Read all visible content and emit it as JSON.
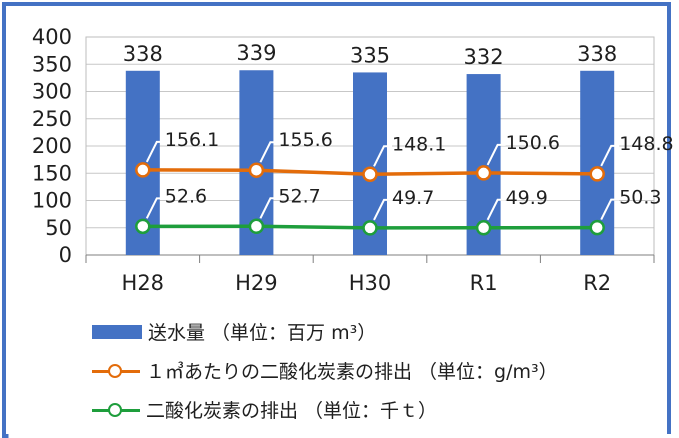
{
  "chart_data": {
    "type": "bar",
    "categories": [
      "H28",
      "H29",
      "H30",
      "R1",
      "R2"
    ],
    "ylim": [
      0,
      400
    ],
    "yticks": [
      0,
      50,
      100,
      150,
      200,
      250,
      300,
      350,
      400
    ],
    "grid": "horizontal",
    "legend_position": "bottom",
    "series": [
      {
        "name": "送水量 （単位：百万 m³）",
        "type": "bar",
        "color": "#4472c4",
        "values": [
          338,
          339,
          335,
          332,
          338
        ]
      },
      {
        "name": "１㎥あたりの二酸化炭素の排出 （単位：g/m³）",
        "type": "line",
        "color": "#e36c0a",
        "values": [
          156.1,
          155.6,
          148.1,
          150.6,
          148.8
        ]
      },
      {
        "name": "二酸化炭素の排出 （単位：千ｔ）",
        "type": "line",
        "color": "#1e9e3c",
        "values": [
          52.6,
          52.7,
          49.7,
          49.9,
          50.3
        ]
      }
    ],
    "data_labels": {
      "bar": [
        "338",
        "339",
        "335",
        "332",
        "338"
      ],
      "line1": [
        "156.1",
        "155.6",
        "148.1",
        "150.6",
        "148.8"
      ],
      "line2": [
        "52.6",
        "52.7",
        "49.7",
        "49.9",
        "50.3"
      ]
    }
  }
}
